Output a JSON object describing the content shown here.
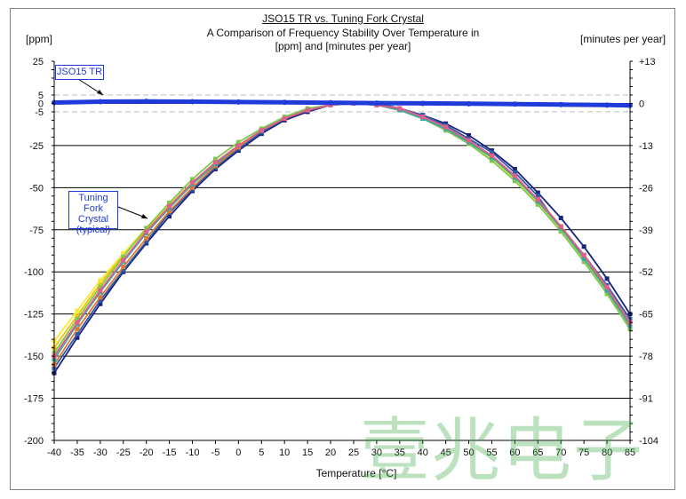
{
  "chart_data": {
    "type": "line",
    "title": "JSO15 TR vs. Tuning Fork Crystal",
    "subtitle": [
      "A Comparison of Frequency Stability Over Temperature in",
      "[ppm] and [minutes per year]"
    ],
    "xlabel": "Temperature [°C]",
    "ylabel_left": "[ppm]",
    "ylabel_right": "[minutes per year]",
    "xlim": [
      -40,
      85
    ],
    "ylim": [
      -200,
      25
    ],
    "x_ticks": [
      -40,
      -35,
      -30,
      -25,
      -20,
      -15,
      -10,
      -5,
      0,
      5,
      10,
      15,
      20,
      25,
      30,
      35,
      40,
      45,
      50,
      55,
      60,
      65,
      70,
      75,
      80,
      85
    ],
    "y_ticks_left": [
      "25",
      "5",
      "0",
      "-5",
      "-25",
      "-50",
      "-75",
      "-100",
      "-125",
      "-150",
      "-175",
      "-200"
    ],
    "y_tick_values_left": [
      25,
      5,
      0,
      -5,
      -25,
      -50,
      -75,
      -100,
      -125,
      -150,
      -175,
      -200
    ],
    "y_ticks_right": [
      "+13",
      "0",
      "-13",
      "-26",
      "-39",
      "-52",
      "-65",
      "-78",
      "-91",
      "-104"
    ],
    "y_tick_values_right": [
      25,
      0,
      -25,
      -50,
      -75,
      -100,
      -125,
      -150,
      -175,
      -200
    ],
    "grid": true,
    "series": [
      {
        "name": "JSO15 TR",
        "color": "#1f3bd9",
        "x": [
          -40,
          -30,
          -20,
          -10,
          0,
          10,
          20,
          30,
          40,
          50,
          60,
          70,
          80,
          85
        ],
        "y": [
          0.5,
          1.0,
          1.2,
          1.0,
          0.8,
          0.6,
          0.4,
          0.2,
          0.0,
          -0.2,
          -0.4,
          -0.7,
          -1.0,
          -1.2
        ]
      },
      {
        "color": "#1a237e",
        "x": [
          -40,
          -35,
          -30,
          -25,
          -20,
          -15,
          -10,
          -5,
          0,
          5,
          10,
          15,
          20,
          25,
          30,
          35,
          40,
          45,
          50,
          55,
          60,
          65,
          70,
          75,
          80,
          85
        ],
        "y": [
          -160,
          -139,
          -119,
          -100,
          -83,
          -67,
          -52,
          -39,
          -28,
          -18,
          -10,
          -5,
          -1,
          0,
          0,
          -3,
          -7,
          -12,
          -19,
          -28,
          -39,
          -53,
          -68,
          -85,
          -104,
          -125
        ]
      },
      {
        "color": "#2f5aa8",
        "x": [
          -40,
          -35,
          -30,
          -25,
          -20,
          -15,
          -10,
          -5,
          0,
          5,
          10,
          15,
          20,
          25,
          30,
          35,
          40,
          45,
          50,
          55,
          60,
          65,
          70,
          75,
          80,
          85
        ],
        "y": [
          -157,
          -137,
          -117,
          -99,
          -82,
          -65,
          -51,
          -38,
          -27,
          -17,
          -9,
          -4,
          -1,
          0,
          0,
          -3,
          -7,
          -13,
          -21,
          -29,
          -41,
          -55,
          -75,
          -90,
          -108,
          -128
        ]
      },
      {
        "color": "#e07a2e",
        "x": [
          -40,
          -35,
          -30,
          -25,
          -20,
          -15,
          -10,
          -5,
          0,
          5,
          10,
          15,
          20,
          25,
          30,
          35,
          40,
          45,
          50,
          55,
          60,
          65,
          70,
          75,
          80,
          85
        ],
        "y": [
          -155,
          -134,
          -115,
          -97,
          -80,
          -64,
          -50,
          -37,
          -26,
          -16,
          -9,
          -4,
          -1,
          0,
          -1,
          -3,
          -8,
          -14,
          -22,
          -31,
          -43,
          -57,
          -73,
          -90,
          -110,
          -131
        ]
      },
      {
        "color": "#f2c100",
        "x": [
          -40,
          -35,
          -30,
          -25,
          -20,
          -15,
          -10,
          -5,
          0,
          5,
          10,
          15,
          20,
          25,
          30,
          35,
          40,
          45,
          50,
          55,
          60,
          65,
          70,
          75,
          80,
          85
        ],
        "y": [
          -145,
          -126,
          -107,
          -90,
          -75,
          -60,
          -47,
          -35,
          -25,
          -16,
          -9,
          -4,
          -1,
          0,
          -1,
          -4,
          -9,
          -15,
          -23,
          -33,
          -45,
          -59,
          -75,
          -93,
          -113,
          -133
        ]
      },
      {
        "color": "#f7ea3a",
        "x": [
          -40,
          -35,
          -30,
          -25,
          -20,
          -15,
          -10,
          -5,
          0,
          5,
          10,
          15,
          20,
          25,
          30,
          35,
          40,
          45,
          50,
          55,
          60,
          65,
          70,
          75,
          80,
          85
        ],
        "y": [
          -141,
          -123,
          -105,
          -89,
          -74,
          -60,
          -47,
          -35,
          -25,
          -16,
          -9,
          -4,
          -1,
          0,
          -1,
          -4,
          -9,
          -15,
          -23,
          -33,
          -45,
          -59,
          -75,
          -93,
          -113,
          -133
        ]
      },
      {
        "color": "#7ec850",
        "x": [
          -40,
          -35,
          -30,
          -25,
          -20,
          -15,
          -10,
          -5,
          0,
          5,
          10,
          15,
          20,
          25,
          30,
          35,
          40,
          45,
          50,
          55,
          60,
          65,
          70,
          75,
          80,
          85
        ],
        "y": [
          -148,
          -128,
          -109,
          -91,
          -74,
          -59,
          -45,
          -33,
          -23,
          -15,
          -8,
          -3,
          -1,
          0,
          -1,
          -4,
          -9,
          -16,
          -24,
          -34,
          -46,
          -60,
          -76,
          -94,
          -113,
          -134
        ]
      },
      {
        "color": "#3aa6a0",
        "x": [
          -40,
          -35,
          -30,
          -25,
          -20,
          -15,
          -10,
          -5,
          0,
          5,
          10,
          15,
          20,
          25,
          30,
          35,
          40,
          45,
          50,
          55,
          60,
          65,
          70,
          75,
          80,
          85
        ],
        "y": [
          -152,
          -131,
          -112,
          -94,
          -77,
          -62,
          -48,
          -36,
          -25,
          -16,
          -9,
          -4,
          -1,
          0,
          -1,
          -4,
          -9,
          -15,
          -23,
          -32,
          -44,
          -58,
          -74,
          -92,
          -111,
          -132
        ]
      },
      {
        "color": "#e65c8a",
        "x": [
          -40,
          -35,
          -30,
          -25,
          -20,
          -15,
          -10,
          -5,
          0,
          5,
          10,
          15,
          20,
          25,
          30,
          35,
          40,
          45,
          50,
          55,
          60,
          65,
          70,
          75,
          80,
          85
        ],
        "y": [
          -150,
          -130,
          -111,
          -93,
          -76,
          -61,
          -47,
          -35,
          -25,
          -16,
          -9,
          -4,
          -1,
          0,
          -1,
          -3,
          -8,
          -14,
          -22,
          -31,
          -43,
          -57,
          -73,
          -90,
          -109,
          -130
        ]
      }
    ]
  },
  "annotations": {
    "jso_label": "JSO15 TR",
    "tf_label": [
      "Tuning Fork",
      "Crystal",
      "(typical)"
    ]
  },
  "watermark": "壹兆电子"
}
